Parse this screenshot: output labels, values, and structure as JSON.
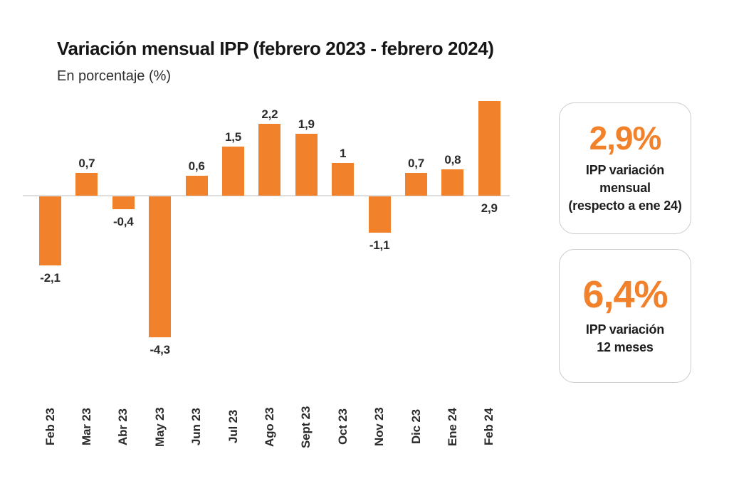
{
  "header": {
    "title": "Variación mensual IPP (febrero 2023 - febrero 2024)",
    "subtitle": "En porcentaje (%)"
  },
  "chart_data": {
    "type": "bar",
    "title": "Variación mensual IPP (febrero 2023 - febrero 2024)",
    "xlabel": "",
    "ylabel": "En porcentaje (%)",
    "categories": [
      "Feb 23",
      "Mar 23",
      "Abr 23",
      "May 23",
      "Jun 23",
      "Jul 23",
      "Ago 23",
      "Sept 23",
      "Oct 23",
      "Nov 23",
      "Dic 23",
      "Ene 24",
      "Feb 24"
    ],
    "values": [
      -2.1,
      0.7,
      -0.4,
      -4.3,
      0.6,
      1.5,
      2.2,
      1.9,
      1,
      -1.1,
      0.7,
      0.8,
      2.9
    ],
    "value_labels": [
      "-2,1",
      "0,7",
      "-0,4",
      "-4,3",
      "0,6",
      "1,5",
      "2,2",
      "1,9",
      "1",
      "-1,1",
      "0,7",
      "0,8",
      "2,9"
    ],
    "label_positions": [
      "below",
      "above",
      "below",
      "below",
      "above",
      "above",
      "above",
      "above",
      "above",
      "below",
      "above",
      "above",
      "below-axis"
    ],
    "ylim": [
      -4.8,
      3.1
    ],
    "grid": false,
    "legend": false,
    "bar_color": "#F2812B",
    "axis_color": "#DEDEDE"
  },
  "cards": [
    {
      "value": "2,9%",
      "lines": [
        "IPP variación",
        "mensual",
        "(respecto a ene 24)"
      ]
    },
    {
      "value": "6,4%",
      "lines": [
        "IPP variación",
        "12 meses"
      ]
    }
  ],
  "colors": {
    "accent_orange": "#F2812B",
    "text_dark": "#2B2B2B",
    "card_border": "#CCCCCC"
  }
}
